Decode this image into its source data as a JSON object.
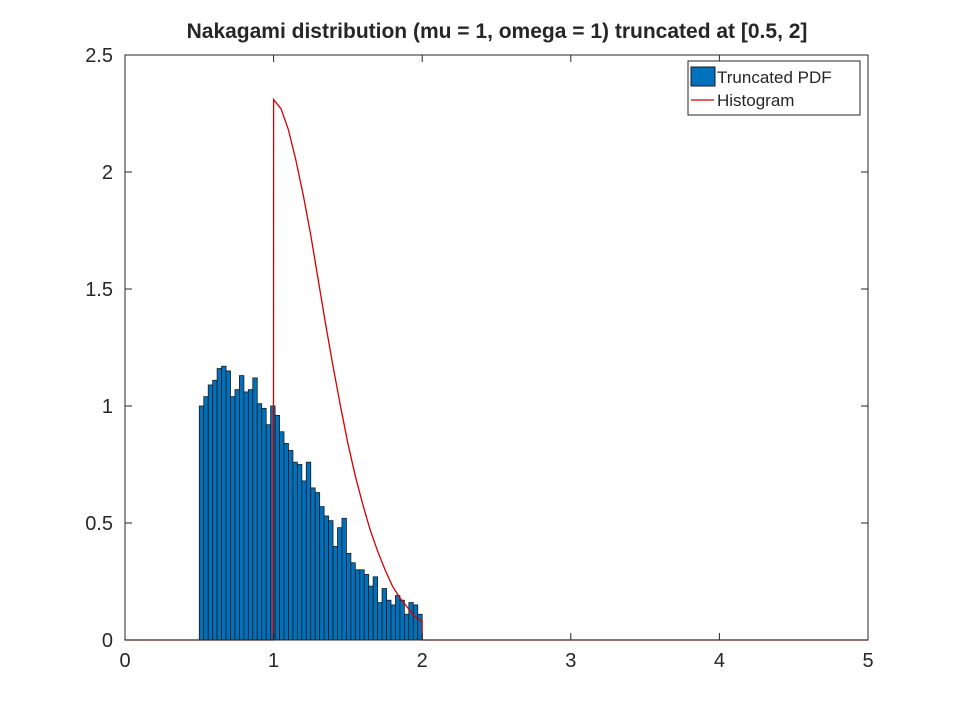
{
  "chart_data": {
    "type": "bar",
    "title": "Nakagami distribution (mu = 1, omega = 1) truncated at [0.5, 2]",
    "xlabel": "",
    "ylabel": "",
    "xlim": [
      0,
      5
    ],
    "ylim": [
      0,
      2.5
    ],
    "x_ticks": [
      0,
      1,
      2,
      3,
      4,
      5
    ],
    "x_tick_labels": [
      "0",
      "1",
      "2",
      "3",
      "4",
      "5"
    ],
    "y_ticks": [
      0,
      0.5,
      1,
      1.5,
      2,
      2.5
    ],
    "y_tick_labels": [
      "0",
      "0.5",
      "1",
      "1.5",
      "2",
      "2.5"
    ],
    "grid": false,
    "legend_placement": "top-right",
    "legend": [
      {
        "label": "Truncated PDF",
        "symbol": "bar",
        "color": "#0072BD"
      },
      {
        "label": "Histogram",
        "symbol": "line",
        "color": "#D40000"
      }
    ],
    "bars": {
      "name": "Truncated PDF",
      "color": "#0072BD",
      "edge_color": "#1a1a1a",
      "bin_start": 0.5,
      "bin_width": 0.03,
      "values": [
        1.0,
        1.04,
        1.09,
        1.11,
        1.16,
        1.17,
        1.15,
        1.04,
        1.07,
        1.13,
        1.06,
        1.07,
        1.12,
        1.01,
        0.99,
        0.92,
        1.0,
        0.96,
        0.89,
        0.84,
        0.81,
        0.76,
        0.75,
        0.68,
        0.76,
        0.65,
        0.63,
        0.57,
        0.53,
        0.51,
        0.4,
        0.48,
        0.52,
        0.37,
        0.33,
        0.3,
        0.3,
        0.28,
        0.23,
        0.27,
        0.16,
        0.22,
        0.17,
        0.15,
        0.19,
        0.17,
        0.11,
        0.16,
        0.15,
        0.11
      ]
    },
    "line": {
      "name": "Histogram",
      "color": "#D40000",
      "description_formula": "2x^3? no",
      "x": [
        0,
        0.999,
        1.0,
        1.05,
        1.1,
        1.15,
        1.2,
        1.25,
        1.3,
        1.35,
        1.4,
        1.45,
        1.5,
        1.55,
        1.6,
        1.65,
        1.7,
        1.75,
        1.8,
        1.85,
        1.9,
        1.95,
        1.999,
        2.0,
        5
      ],
      "y": [
        0,
        0,
        2.31,
        2.27,
        2.18,
        2.05,
        1.9,
        1.73,
        1.54,
        1.35,
        1.17,
        1.0,
        0.84,
        0.7,
        0.58,
        0.47,
        0.38,
        0.3,
        0.23,
        0.18,
        0.14,
        0.1,
        0.08,
        0,
        0
      ]
    }
  }
}
